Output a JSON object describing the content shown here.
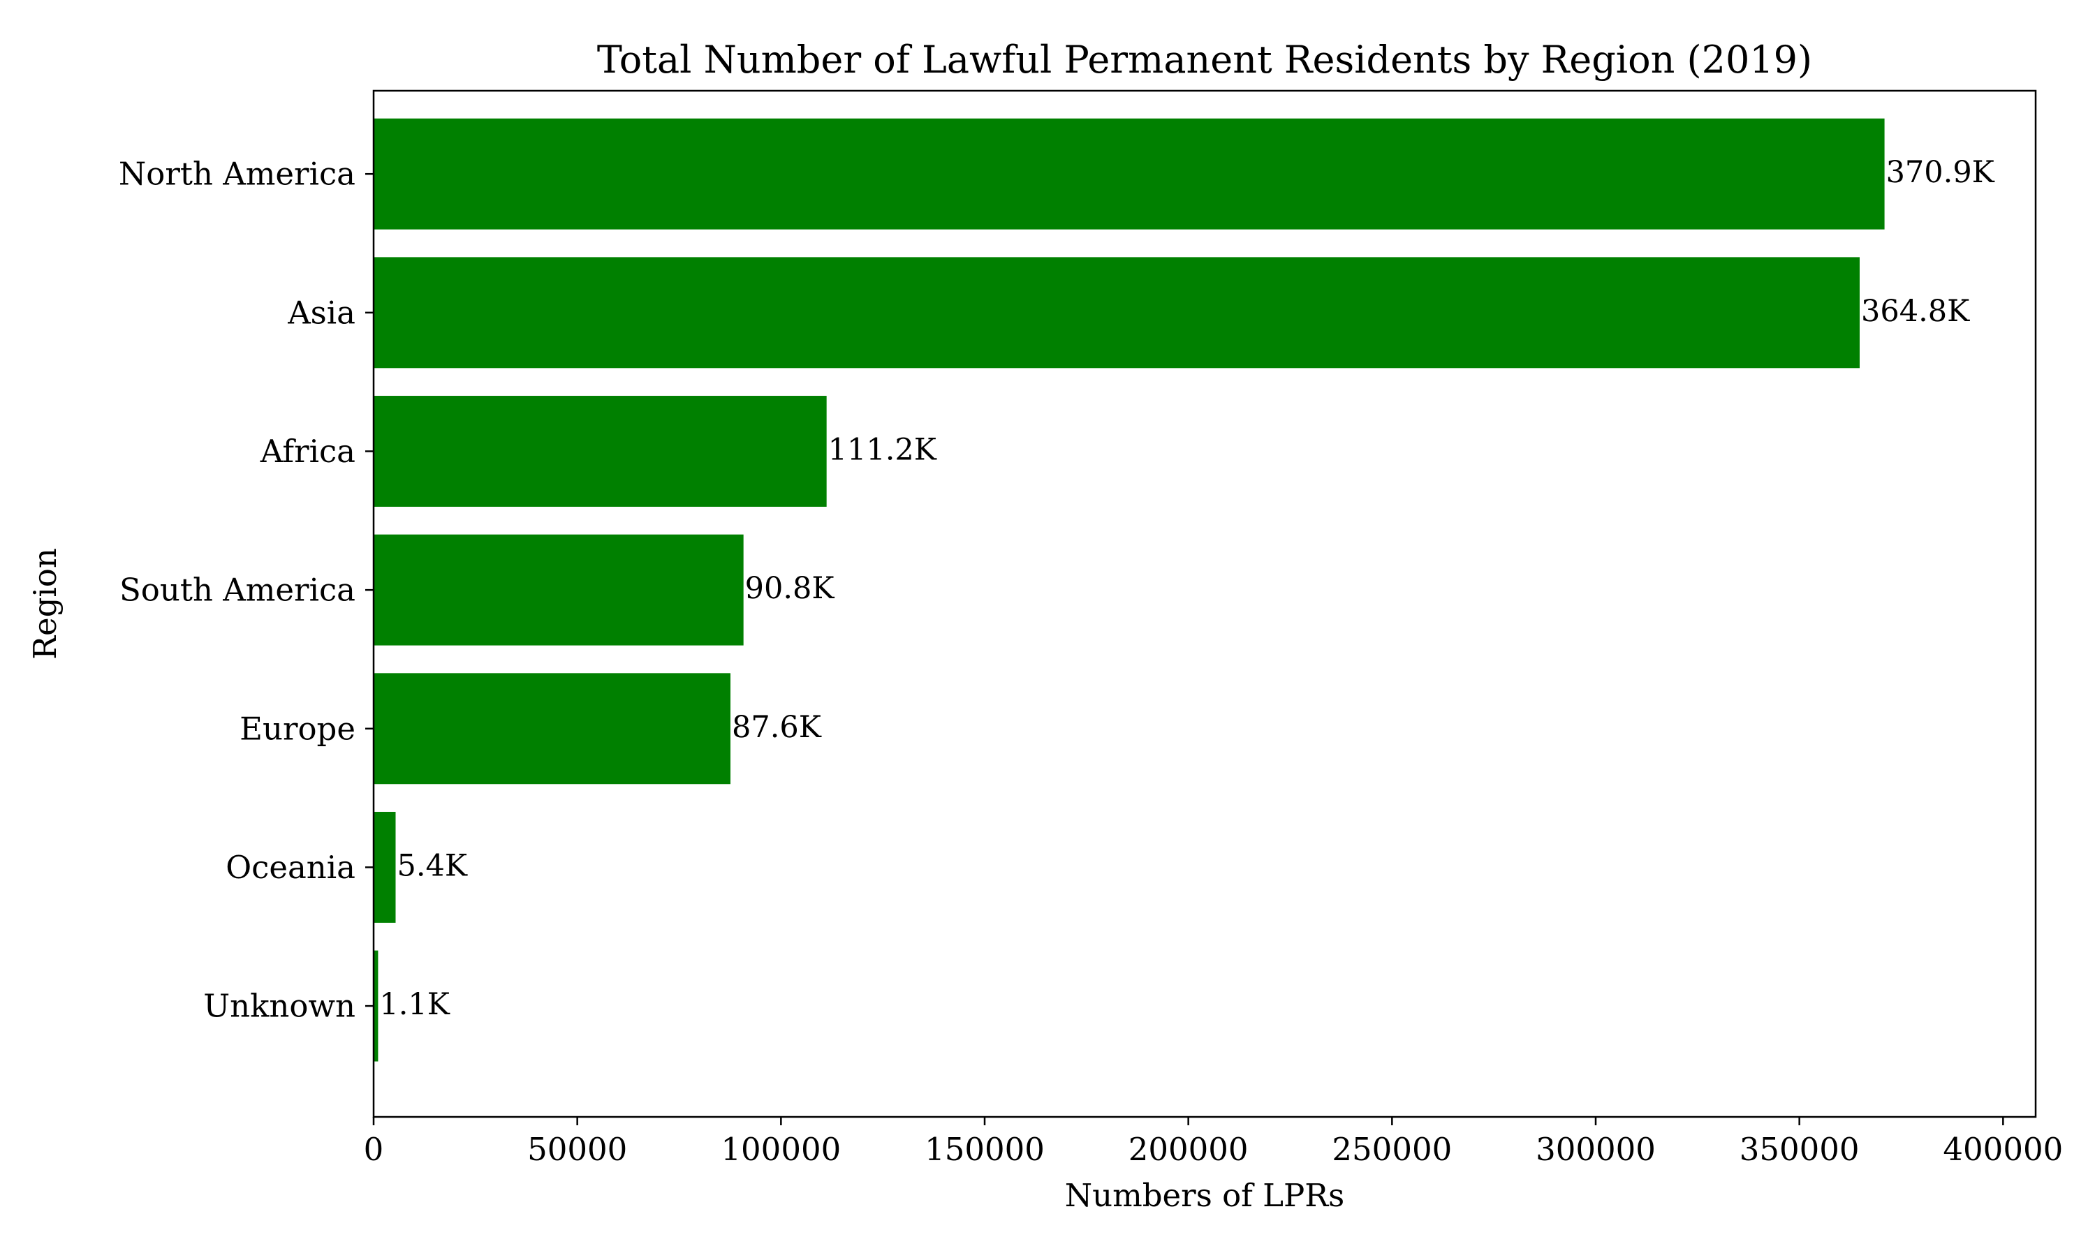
{
  "chart_data": {
    "type": "bar",
    "orientation": "horizontal",
    "title": "Total Number of Lawful Permanent Residents by Region (2019)",
    "xlabel": "Numbers of LPRs",
    "ylabel": "Region",
    "categories": [
      "North America",
      "Asia",
      "Africa",
      "South America",
      "Europe",
      "Oceania",
      "Unknown"
    ],
    "values": [
      370900,
      364800,
      111200,
      90800,
      87600,
      5400,
      1100
    ],
    "data_labels": [
      "370.9K",
      "364.8K",
      "111.2K",
      "90.8K",
      "87.6K",
      "5.4K",
      "1.1K"
    ],
    "xlim": [
      0,
      408000
    ],
    "xticks": [
      0,
      50000,
      100000,
      150000,
      200000,
      250000,
      300000,
      350000,
      400000
    ],
    "xtick_labels": [
      "0",
      "50000",
      "100000",
      "150000",
      "200000",
      "250000",
      "300000",
      "350000",
      "400000"
    ],
    "bar_color": "#008000",
    "grid": false,
    "legend": "none"
  }
}
